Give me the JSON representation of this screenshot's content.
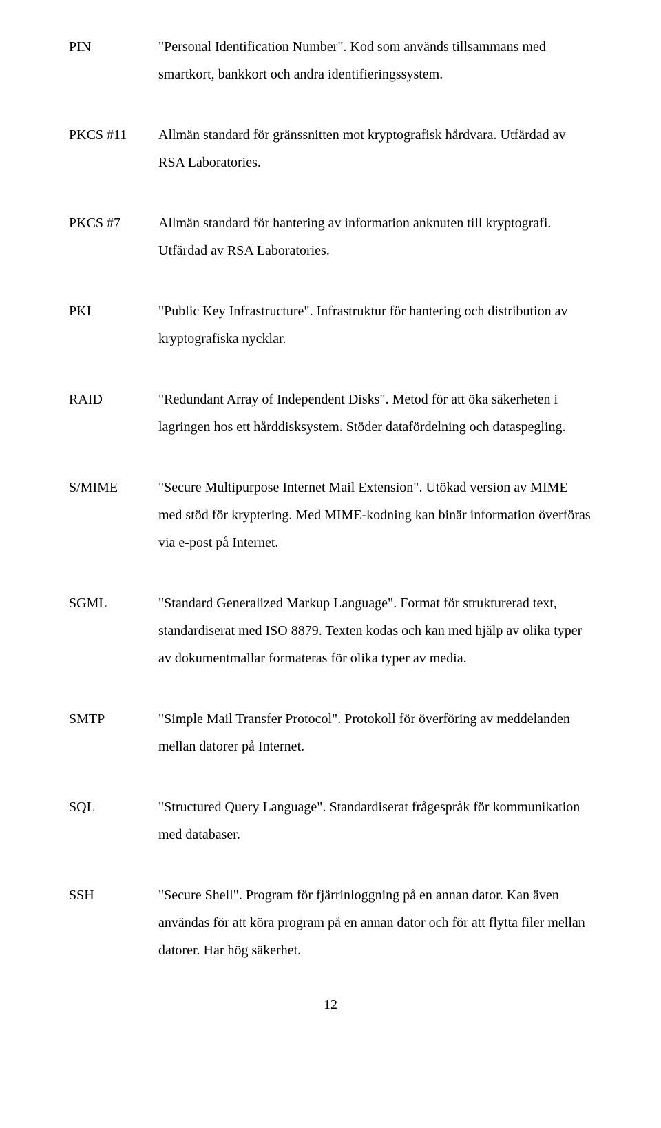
{
  "entries": [
    {
      "term": "PIN",
      "def": "\"Personal Identification Number\". Kod som används tillsammans med smartkort, bankkort och andra identifieringssystem."
    },
    {
      "term": "PKCS #11",
      "def": "Allmän standard för gränssnitten mot kryptografisk hårdvara. Utfärdad av RSA Laboratories."
    },
    {
      "term": "PKCS #7",
      "def": "Allmän standard för hantering av information anknuten till kryptografi. Utfärdad av RSA Laboratories."
    },
    {
      "term": "PKI",
      "def": "\"Public Key Infrastructure\". Infrastruktur för hantering och distribution av kryptografiska nycklar."
    },
    {
      "term": "RAID",
      "def": "\"Redundant Array of Independent Disks\". Metod för att öka säkerheten i lagringen hos ett hårddisksystem. Stöder datafördelning och dataspegling."
    },
    {
      "term": "S/MIME",
      "def": "\"Secure Multipurpose Internet Mail Extension\". Utökad version av MIME med stöd för kryptering. Med MIME-kodning kan binär information överföras via e-post på Internet."
    },
    {
      "term": "SGML",
      "def": "\"Standard Generalized Markup Language\". Format för strukturerad text, standardiserat med ISO 8879. Texten kodas och kan med hjälp av olika typer av dokumentmallar formateras för olika typer av media."
    },
    {
      "term": "SMTP",
      "def": "\"Simple Mail Transfer Protocol\". Protokoll för överföring av meddelanden mellan datorer på Internet."
    },
    {
      "term": "SQL",
      "def": "\"Structured Query Language\". Standardiserat frågespråk för kommunikation med databaser."
    },
    {
      "term": "SSH",
      "def": "\"Secure Shell\". Program för fjärrinloggning på en annan dator. Kan även användas för att köra program på en annan dator och för att flytta filer mellan datorer. Har hög säkerhet."
    }
  ],
  "page_number": "12"
}
